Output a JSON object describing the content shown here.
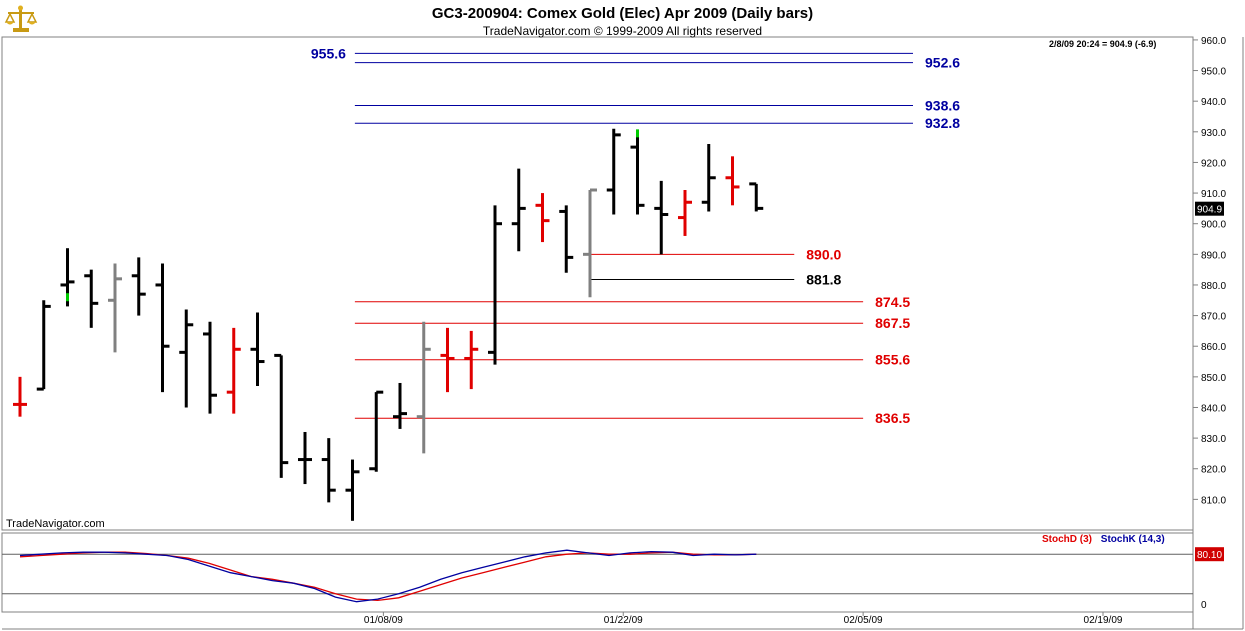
{
  "header": {
    "title": "GC3-200904:  Comex Gold (Elec) Apr 2009  (Daily bars)",
    "subtitle": "TradeNavigator.com © 1999-2009 All rights reserved",
    "timestamp": "2/8/09 20:24 = 904.9 (-6.9)",
    "watermark": "TradeNavigator.com",
    "logo_icon": "scales-icon"
  },
  "colors": {
    "up_bar": "#000000",
    "down_bar": "#e00000",
    "neutral_bar": "#808080",
    "blue_level": "#0000a0",
    "red_level": "#e00000",
    "stoch_d": "#e00000",
    "stoch_k": "#0000a0",
    "frame": "#808080"
  },
  "chart_data": {
    "type": "bar",
    "subtype": "ohlc",
    "title": "GC3-200904:  Comex Gold (Elec) Apr 2009  (Daily bars)",
    "ylim": [
      800,
      963
    ],
    "y_ticks": [
      "960.0",
      "950.0",
      "940.0",
      "930.0",
      "920.0",
      "910.0",
      "900.0",
      "890.0",
      "880.0",
      "870.0",
      "860.0",
      "850.0",
      "840.0",
      "830.0",
      "820.0",
      "810.0"
    ],
    "x_ticks": [
      {
        "label": "01/08/09",
        "index": 15.3
      },
      {
        "label": "01/22/09",
        "index": 25.4
      },
      {
        "label": "02/05/09",
        "index": 35.5
      },
      {
        "label": "02/19/09",
        "index": 45.6
      }
    ],
    "last_price_label": "904.9",
    "bars": [
      {
        "o": 841,
        "h": 850,
        "l": 837,
        "c": 841,
        "color": "red"
      },
      {
        "o": 846,
        "h": 875,
        "l": 846,
        "c": 873,
        "color": "black"
      },
      {
        "o": 880,
        "h": 892,
        "l": 873,
        "c": 881,
        "color": "black"
      },
      {
        "o": 883,
        "h": 885,
        "l": 866,
        "c": 874,
        "color": "black"
      },
      {
        "o": 875,
        "h": 887,
        "l": 858,
        "c": 882,
        "color": "gray"
      },
      {
        "o": 883,
        "h": 889,
        "l": 870,
        "c": 877,
        "color": "black"
      },
      {
        "o": 880,
        "h": 887,
        "l": 845,
        "c": 860,
        "color": "black"
      },
      {
        "o": 858,
        "h": 872,
        "l": 840,
        "c": 867,
        "color": "black"
      },
      {
        "o": 864,
        "h": 868,
        "l": 838,
        "c": 844,
        "color": "black"
      },
      {
        "o": 845,
        "h": 866,
        "l": 838,
        "c": 859,
        "color": "red"
      },
      {
        "o": 859,
        "h": 871,
        "l": 847,
        "c": 855,
        "color": "black"
      },
      {
        "o": 857,
        "h": 857,
        "l": 817,
        "c": 822,
        "color": "black"
      },
      {
        "o": 823,
        "h": 832,
        "l": 815,
        "c": 823,
        "color": "black"
      },
      {
        "o": 823,
        "h": 830,
        "l": 809,
        "c": 813,
        "color": "black"
      },
      {
        "o": 813,
        "h": 823,
        "l": 803,
        "c": 819,
        "color": "black"
      },
      {
        "o": 820,
        "h": 845,
        "l": 819,
        "c": 845,
        "color": "black"
      },
      {
        "o": 837,
        "h": 848,
        "l": 833,
        "c": 838,
        "color": "black"
      },
      {
        "o": 837,
        "h": 868,
        "l": 825,
        "c": 859,
        "color": "gray"
      },
      {
        "o": 857,
        "h": 866,
        "l": 845,
        "c": 856,
        "color": "red"
      },
      {
        "o": 856,
        "h": 865,
        "l": 846,
        "c": 859,
        "color": "red"
      },
      {
        "o": 858,
        "h": 906,
        "l": 854,
        "c": 900,
        "color": "black"
      },
      {
        "o": 900,
        "h": 918,
        "l": 891,
        "c": 905,
        "color": "black"
      },
      {
        "o": 906,
        "h": 910,
        "l": 894,
        "c": 901,
        "color": "red"
      },
      {
        "o": 904,
        "h": 906,
        "l": 884,
        "c": 889,
        "color": "black"
      },
      {
        "o": 890,
        "h": 911,
        "l": 876,
        "c": 911,
        "color": "gray"
      },
      {
        "o": 911,
        "h": 931,
        "l": 903,
        "c": 929,
        "color": "black"
      },
      {
        "o": 925,
        "h": 930,
        "l": 903,
        "c": 906,
        "color": "black"
      },
      {
        "o": 905,
        "h": 914,
        "l": 890,
        "c": 903,
        "color": "black"
      },
      {
        "o": 902,
        "h": 911,
        "l": 896,
        "c": 907,
        "color": "red"
      },
      {
        "o": 907,
        "h": 926,
        "l": 904,
        "c": 915,
        "color": "black"
      },
      {
        "o": 915,
        "h": 922,
        "l": 906,
        "c": 912,
        "color": "red"
      },
      {
        "o": 913,
        "h": 913,
        "l": 904,
        "c": 905,
        "color": "black"
      }
    ],
    "green_marks": [
      {
        "index": 2,
        "value": 876
      },
      {
        "index": 26,
        "value": 929.5
      }
    ],
    "levels": [
      {
        "label": "955.6",
        "value": 955.6,
        "color": "blue",
        "from": 14.1,
        "to": 37.6,
        "label_side": "left"
      },
      {
        "label": "952.6",
        "value": 952.6,
        "color": "blue",
        "from": 14.1,
        "to": 37.6,
        "label_side": "right"
      },
      {
        "label": "938.6",
        "value": 938.6,
        "color": "blue",
        "from": 14.1,
        "to": 37.6,
        "label_side": "right"
      },
      {
        "label": "932.8",
        "value": 932.8,
        "color": "blue",
        "from": 14.1,
        "to": 37.6,
        "label_side": "right"
      },
      {
        "label": "890.0",
        "value": 890.0,
        "color": "red",
        "from": 24.0,
        "to": 32.6,
        "label_side": "right"
      },
      {
        "label": "881.8",
        "value": 881.8,
        "color": "black",
        "from": 24.0,
        "to": 32.6,
        "label_side": "right"
      },
      {
        "label": "874.5",
        "value": 874.5,
        "color": "red",
        "from": 14.1,
        "to": 35.5,
        "label_side": "right"
      },
      {
        "label": "867.5",
        "value": 867.5,
        "color": "red",
        "from": 14.1,
        "to": 35.5,
        "label_side": "right"
      },
      {
        "label": "855.6",
        "value": 855.6,
        "color": "red",
        "from": 14.1,
        "to": 35.5,
        "label_side": "right"
      },
      {
        "label": "836.5",
        "value": 836.5,
        "color": "red",
        "from": 14.1,
        "to": 35.5,
        "label_side": "right"
      }
    ],
    "stochastic": {
      "ylim": [
        0,
        100
      ],
      "reference_lines": [
        80,
        20
      ],
      "axis_label": "0",
      "value_label": "80.10",
      "d_label": "StochD (3)",
      "k_label": "StochK (14,3)",
      "k": [
        78,
        80,
        82,
        83,
        83,
        82,
        80,
        78,
        72,
        62,
        52,
        46,
        40,
        36,
        28,
        15,
        8,
        12,
        20,
        30,
        42,
        52,
        60,
        68,
        76,
        82,
        86,
        82,
        78,
        82,
        84,
        83,
        78,
        80,
        79,
        80
      ],
      "d": [
        76,
        78,
        80,
        82,
        83,
        83,
        81,
        78,
        74,
        66,
        56,
        46,
        42,
        36,
        30,
        20,
        12,
        10,
        14,
        24,
        34,
        44,
        52,
        60,
        68,
        76,
        80,
        82,
        80,
        80,
        82,
        83,
        80,
        79,
        79,
        80
      ]
    }
  }
}
